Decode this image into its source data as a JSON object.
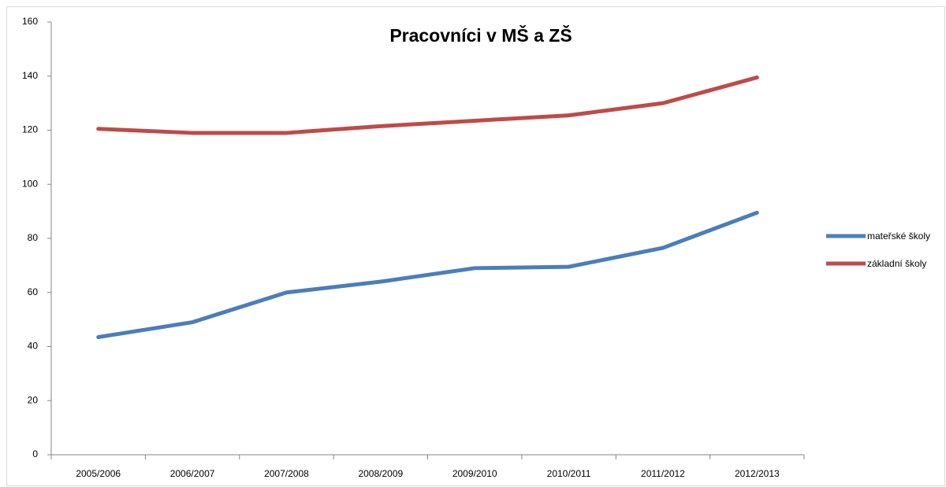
{
  "chart_data": {
    "type": "line",
    "title": "Pracovníci v MŠ a ZŠ",
    "categories": [
      "2005/2006",
      "2006/2007",
      "2007/2008",
      "2008/2009",
      "2009/2010",
      "2010/2011",
      "2011/2012",
      "2012/2013"
    ],
    "series": [
      {
        "name": "mateřské školy",
        "color": "#4a7ebb",
        "values": [
          43.5,
          49,
          60,
          64,
          69,
          69.5,
          76.5,
          89.5
        ]
      },
      {
        "name": "základní školy",
        "color": "#be4b48",
        "values": [
          120.5,
          119,
          119,
          121.5,
          123.5,
          125.5,
          130,
          139.5
        ]
      }
    ],
    "ylim": [
      0,
      160
    ],
    "yticks": [
      0,
      20,
      40,
      60,
      80,
      100,
      120,
      140,
      160
    ],
    "grid": false,
    "legend": "right"
  }
}
